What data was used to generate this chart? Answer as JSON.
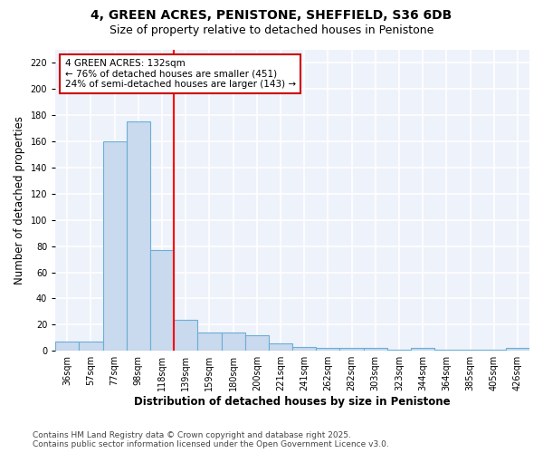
{
  "title_line1": "4, GREEN ACRES, PENISTONE, SHEFFIELD, S36 6DB",
  "title_line2": "Size of property relative to detached houses in Penistone",
  "xlabel": "Distribution of detached houses by size in Penistone",
  "ylabel": "Number of detached properties",
  "categories": [
    "36sqm",
    "57sqm",
    "77sqm",
    "98sqm",
    "118sqm",
    "139sqm",
    "159sqm",
    "180sqm",
    "200sqm",
    "221sqm",
    "241sqm",
    "262sqm",
    "282sqm",
    "303sqm",
    "323sqm",
    "344sqm",
    "364sqm",
    "385sqm",
    "405sqm",
    "426sqm"
  ],
  "values": [
    7,
    7,
    160,
    175,
    77,
    24,
    14,
    14,
    12,
    6,
    3,
    2,
    2,
    2,
    1,
    2,
    1,
    1,
    1,
    2
  ],
  "bar_color": "#c9d9ee",
  "bar_edge_color": "#6baed6",
  "red_line_x": 4.5,
  "annotation_text": "4 GREEN ACRES: 132sqm\n← 76% of detached houses are smaller (451)\n24% of semi-detached houses are larger (143) →",
  "annotation_box_color": "white",
  "annotation_box_edge_color": "#cc0000",
  "ylim": [
    0,
    230
  ],
  "yticks": [
    0,
    20,
    40,
    60,
    80,
    100,
    120,
    140,
    160,
    180,
    200,
    220
  ],
  "footer_line1": "Contains HM Land Registry data © Crown copyright and database right 2025.",
  "footer_line2": "Contains public sector information licensed under the Open Government Licence v3.0.",
  "bg_color": "#eef2fb",
  "grid_color": "white",
  "title_fontsize": 10,
  "subtitle_fontsize": 9,
  "axis_label_fontsize": 8.5,
  "tick_fontsize": 7,
  "annotation_fontsize": 7.5,
  "footer_fontsize": 6.5
}
